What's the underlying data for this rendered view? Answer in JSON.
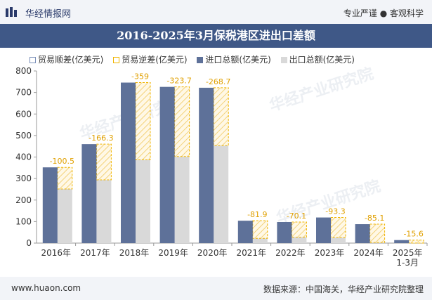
{
  "header": {
    "site_name": "华经情报网",
    "slogan": "专业严谨 ● 客观科学"
  },
  "footer": {
    "url": "www.huaon.com",
    "source": "数据来源：中国海关，华经产业研究院整理"
  },
  "watermark": "华经产业研究院",
  "colors": {
    "import": "#5e7199",
    "export": "#d9d9d9",
    "deficit_border": "#f0b400",
    "surplus_border": "#7a8fb8",
    "title_band": "#3f5887"
  },
  "chart_data": {
    "type": "bar",
    "title": "2016-2025年3月保税港区进出口差额",
    "categories": [
      "2016年",
      "2017年",
      "2018年",
      "2019年",
      "2020年",
      "2021年",
      "2022年",
      "2023年",
      "2024年",
      "2025年\n1-3月"
    ],
    "series": [
      {
        "name": "贸易顺差(亿美元)",
        "values": [
          null,
          null,
          null,
          null,
          null,
          null,
          null,
          null,
          null,
          null
        ]
      },
      {
        "name": "贸易逆差(亿美元)",
        "values": [
          -100.5,
          -166.3,
          -359,
          -323.7,
          -268.7,
          -81.9,
          -70.1,
          -93.3,
          -85.1,
          -15.6
        ]
      },
      {
        "name": "进口总额(亿美元)",
        "values": [
          352,
          460,
          746,
          726,
          722,
          104,
          98,
          119,
          88,
          14
        ]
      },
      {
        "name": "出口总额(亿美元)",
        "values": [
          252,
          294,
          387,
          402,
          453,
          22,
          28,
          26,
          3,
          -1.6
        ]
      }
    ],
    "deficit_labels": [
      "-100.5",
      "-166.3",
      "-359",
      "-323.7",
      "-268.7",
      "-81.9",
      "-70.1",
      "-93.3",
      "-85.1",
      "-15.6"
    ],
    "yticks": [
      "0",
      "100",
      "200",
      "300",
      "400",
      "500",
      "600",
      "700",
      "800"
    ],
    "ylim": [
      0,
      800
    ],
    "grid": false,
    "legend_position": "top-left"
  }
}
